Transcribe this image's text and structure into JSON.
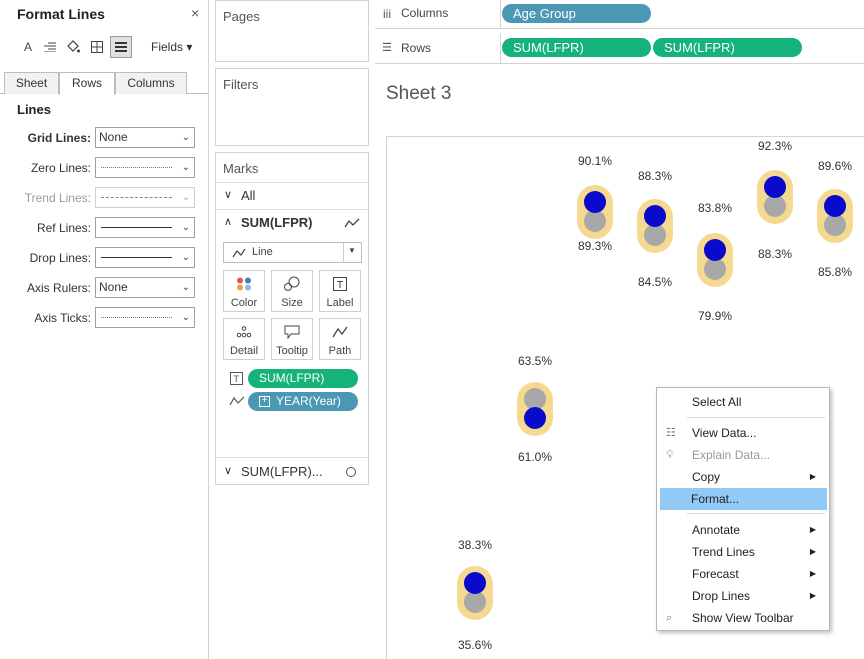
{
  "format_pane": {
    "title": "Format Lines",
    "close": "×",
    "fields_label": "Fields ▾",
    "tabs": [
      "Sheet",
      "Rows",
      "Columns"
    ],
    "active_tab": "Rows",
    "section": "Lines",
    "rows": [
      {
        "label": "Grid Lines:",
        "value": "None"
      },
      {
        "label": "Zero Lines:",
        "value": ""
      },
      {
        "label": "Trend Lines:",
        "value": ""
      },
      {
        "label": "Ref Lines:",
        "value": ""
      },
      {
        "label": "Drop Lines:",
        "value": ""
      },
      {
        "label": "Axis Rulers:",
        "value": "None"
      },
      {
        "label": "Axis Ticks:",
        "value": ""
      }
    ]
  },
  "pages": {
    "title": "Pages"
  },
  "filters": {
    "title": "Filters"
  },
  "marks": {
    "title": "Marks",
    "all": "All",
    "measure": "SUM(LFPR)",
    "mark_type": "Line",
    "buttons": [
      "Color",
      "Size",
      "Label",
      "Detail",
      "Tooltip",
      "Path"
    ],
    "pill_label": "SUM(LFPR)",
    "pill_path": "YEAR(Year)",
    "measure2": "SUM(LFPR)..."
  },
  "shelves": {
    "columns_label": "Columns",
    "rows_label": "Rows",
    "columns_pill": "Age Group",
    "rows_pill1": "SUM(LFPR)",
    "rows_pill2": "SUM(LFPR)"
  },
  "sheet": {
    "title": "Sheet 3"
  },
  "data_labels": [
    {
      "top": "38.3%",
      "bottom": "35.6%"
    },
    {
      "top": "63.5%",
      "bottom": "61.0%"
    },
    {
      "top": "90.1%",
      "bottom": "89.3%"
    },
    {
      "top": "88.3%",
      "bottom": "84.5%"
    },
    {
      "top": "83.8%",
      "bottom": "79.9%"
    },
    {
      "top": "92.3%",
      "bottom": "88.3%"
    },
    {
      "top": "89.6%",
      "bottom": "85.8%"
    }
  ],
  "context_menu": {
    "items": [
      "Select All",
      "View Data...",
      "Explain Data...",
      "Copy",
      "Format...",
      "Annotate",
      "Trend Lines",
      "Forecast",
      "Drop Lines",
      "Show View Toolbar"
    ],
    "highlighted": "Format..."
  },
  "colors": {
    "pill_green": "#15b27a",
    "pill_blue": "#4b98b5",
    "dot_blue": "#0a0acc",
    "dot_grey": "#a8a8a8",
    "halo": "#f5d991",
    "menu_highlight": "#91c9f7"
  }
}
